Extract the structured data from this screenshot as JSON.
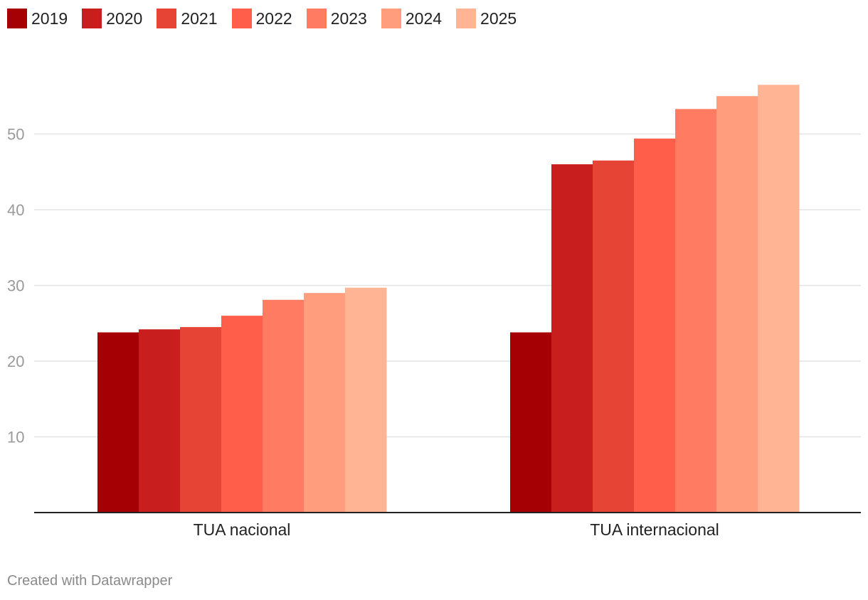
{
  "chart_data": {
    "type": "bar",
    "categories": [
      "TUA nacional",
      "TUA internacional"
    ],
    "series": [
      {
        "name": "2019",
        "color": "#a50003",
        "values": [
          23.8,
          23.8
        ]
      },
      {
        "name": "2020",
        "color": "#c81e1e",
        "values": [
          24.2,
          46.0
        ]
      },
      {
        "name": "2021",
        "color": "#e64535",
        "values": [
          24.5,
          46.5
        ]
      },
      {
        "name": "2022",
        "color": "#ff5f4a",
        "values": [
          26.0,
          49.4
        ]
      },
      {
        "name": "2023",
        "color": "#ff7c62",
        "values": [
          28.1,
          53.3
        ]
      },
      {
        "name": "2024",
        "color": "#ff9d7d",
        "values": [
          29.0,
          55.0
        ]
      },
      {
        "name": "2025",
        "color": "#ffb594",
        "values": [
          29.7,
          56.5
        ]
      }
    ],
    "y_ticks": [
      10,
      20,
      30,
      40,
      50
    ],
    "ylim": [
      0,
      60
    ],
    "title": "",
    "xlabel": "",
    "ylabel": "",
    "grid": true,
    "legend_position": "top-left"
  },
  "footer": {
    "credit": "Created with Datawrapper"
  }
}
